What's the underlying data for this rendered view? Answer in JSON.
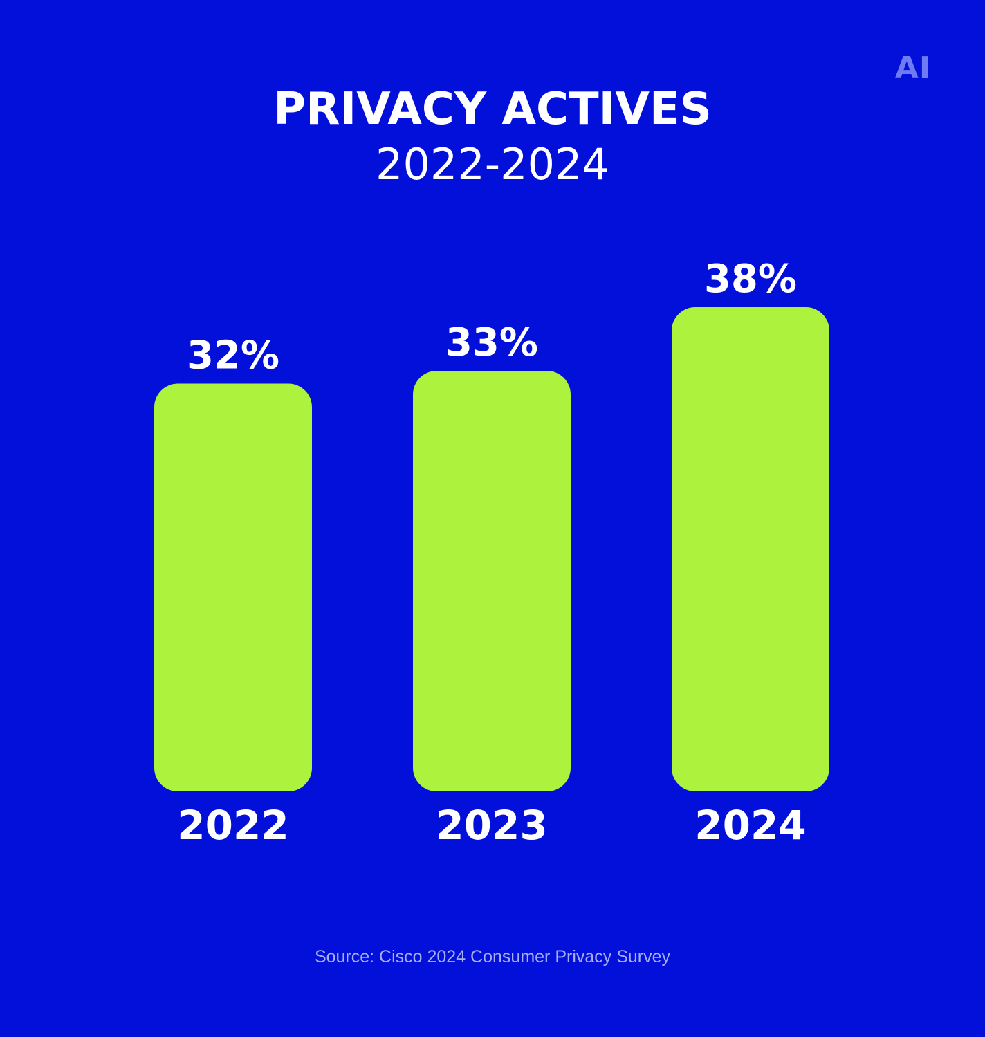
{
  "logo": "AI",
  "colors": {
    "background": "#0210DA",
    "bar": "#ADF23D",
    "text": "#FFFFFF",
    "muted": "#A7AEF5",
    "logo": "#6F7BF2"
  },
  "chart_data": {
    "type": "bar",
    "title": "PRIVACY ACTIVES",
    "subtitle": "2022-2024",
    "categories": [
      "2022",
      "2023",
      "2024"
    ],
    "values": [
      32,
      33,
      38
    ],
    "value_labels": [
      "32%",
      "33%",
      "38%"
    ],
    "grid": false,
    "legend": "none"
  },
  "source": "Source: Cisco 2024 Consumer Privacy Survey"
}
